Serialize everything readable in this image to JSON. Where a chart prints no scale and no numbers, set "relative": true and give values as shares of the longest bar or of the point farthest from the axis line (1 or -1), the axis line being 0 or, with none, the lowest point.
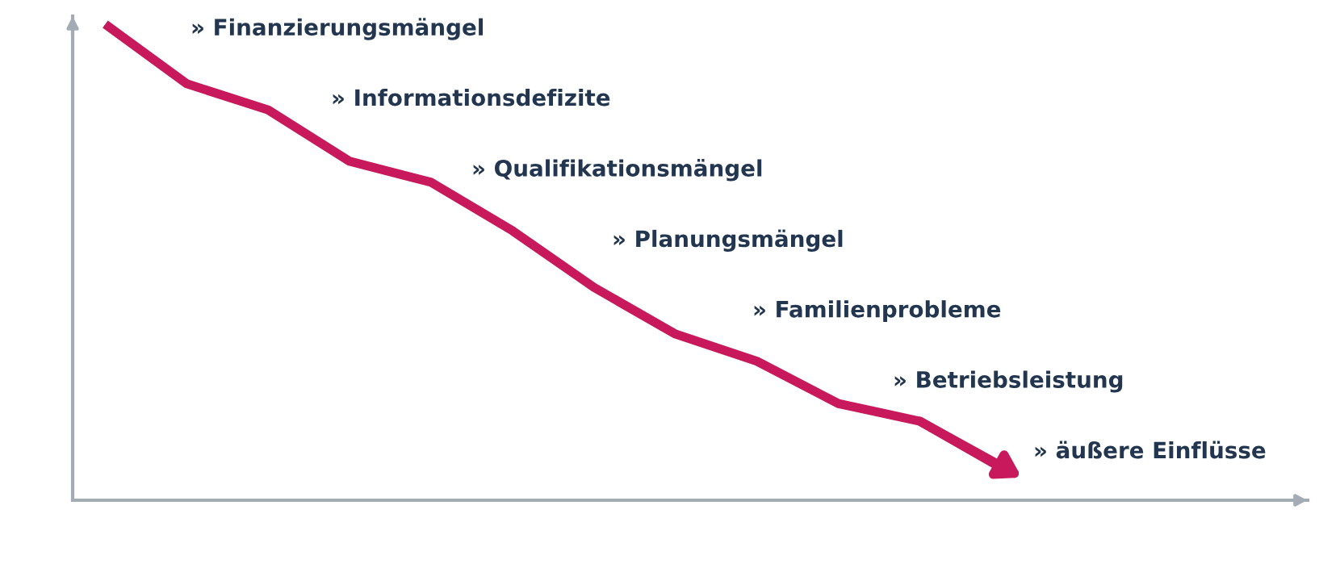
{
  "chart_data": {
    "type": "line",
    "relative": true,
    "categories": [
      null,
      null,
      null,
      null,
      null,
      null,
      null,
      null,
      null,
      null,
      null,
      null
    ],
    "series": [
      {
        "color": "#c8195c",
        "values": [
          1,
          0.875,
          0.82,
          0.712,
          0.668,
          0.566,
          0.447,
          0.349,
          0.292,
          0.203,
          0.166,
          0.068
        ]
      }
    ],
    "annotations": [
      "» Finanzierungsmängel",
      "» Informationsdefizite",
      "» Qualifikationsmängel",
      "» Planungsmängel",
      "» Familienprobleme",
      "» Betriebsleistung",
      "» äußere Einflüsse"
    ],
    "marker": "none",
    "line_style": "solid"
  }
}
